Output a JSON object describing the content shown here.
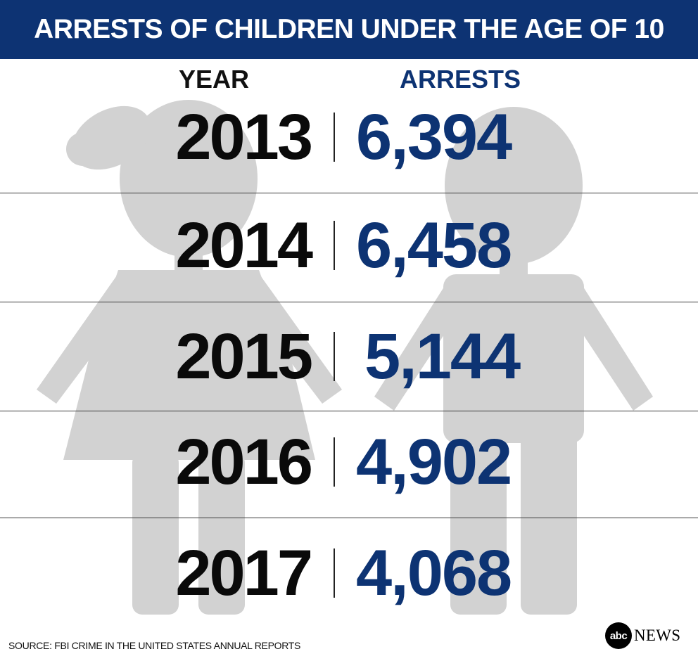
{
  "title": "ARRESTS OF CHILDREN UNDER THE AGE OF 10",
  "columns": {
    "year": "YEAR",
    "arrests": "ARRESTS"
  },
  "rows": [
    {
      "year": "2013",
      "arrests": "6,394"
    },
    {
      "year": "2014",
      "arrests": "6,458"
    },
    {
      "year": "2015",
      "arrests": "5,144"
    },
    {
      "year": "2016",
      "arrests": "4,902"
    },
    {
      "year": "2017",
      "arrests": "4,068"
    }
  ],
  "source": "SOURCE: FBI CRIME IN THE UNITED STATES ANNUAL REPORTS",
  "logo": {
    "mark": "abc",
    "wordmark": "NEWS"
  },
  "colors": {
    "header_bg": "#0d3373",
    "arrests_text": "#0d3373",
    "year_text": "#0a0a0a",
    "figure": "#d2d2d2"
  },
  "chart_data": {
    "type": "table",
    "title": "ARRESTS OF CHILDREN UNDER THE AGE OF 10",
    "columns": [
      "YEAR",
      "ARRESTS"
    ],
    "categories": [
      "2013",
      "2014",
      "2015",
      "2016",
      "2017"
    ],
    "values": [
      6394,
      6458,
      5144,
      4902,
      4068
    ]
  }
}
